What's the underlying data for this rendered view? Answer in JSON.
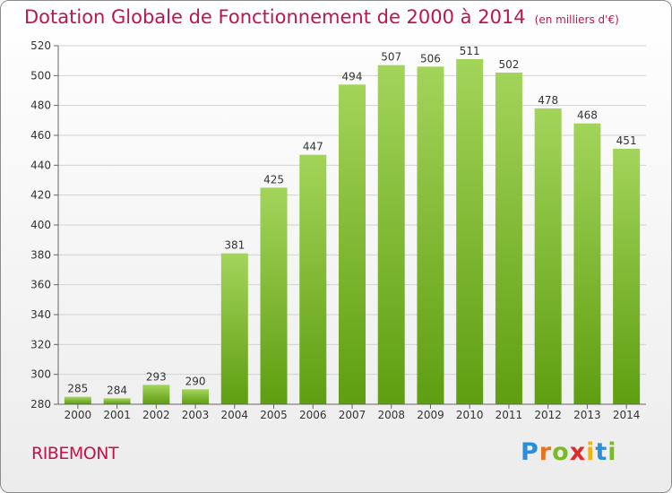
{
  "header": {
    "title": "Dotation Globale de Fonctionnement de 2000 à 2014",
    "unit": "(en milliers d'€)"
  },
  "footer": {
    "commune": "RIBEMONT",
    "logo": "Proxiti"
  },
  "colors": {
    "title": "#c0144a",
    "bar_top": "#a3d45a",
    "bar_bottom": "#5e9e10",
    "grid": "#d2d2d2"
  },
  "chart_data": {
    "type": "bar",
    "title": "Dotation Globale de Fonctionnement de 2000 à 2014",
    "subtitle": "(en milliers d'€)",
    "xlabel": "",
    "ylabel": "",
    "categories": [
      "2000",
      "2001",
      "2002",
      "2003",
      "2004",
      "2005",
      "2006",
      "2007",
      "2008",
      "2009",
      "2010",
      "2011",
      "2012",
      "2013",
      "2014"
    ],
    "values": [
      285,
      284,
      293,
      290,
      381,
      425,
      447,
      494,
      507,
      506,
      511,
      502,
      478,
      468,
      451
    ],
    "ylim": [
      280,
      520
    ],
    "yticks": [
      280,
      300,
      320,
      340,
      360,
      380,
      400,
      420,
      440,
      460,
      480,
      500,
      520
    ],
    "grid": true,
    "legend": "none"
  }
}
